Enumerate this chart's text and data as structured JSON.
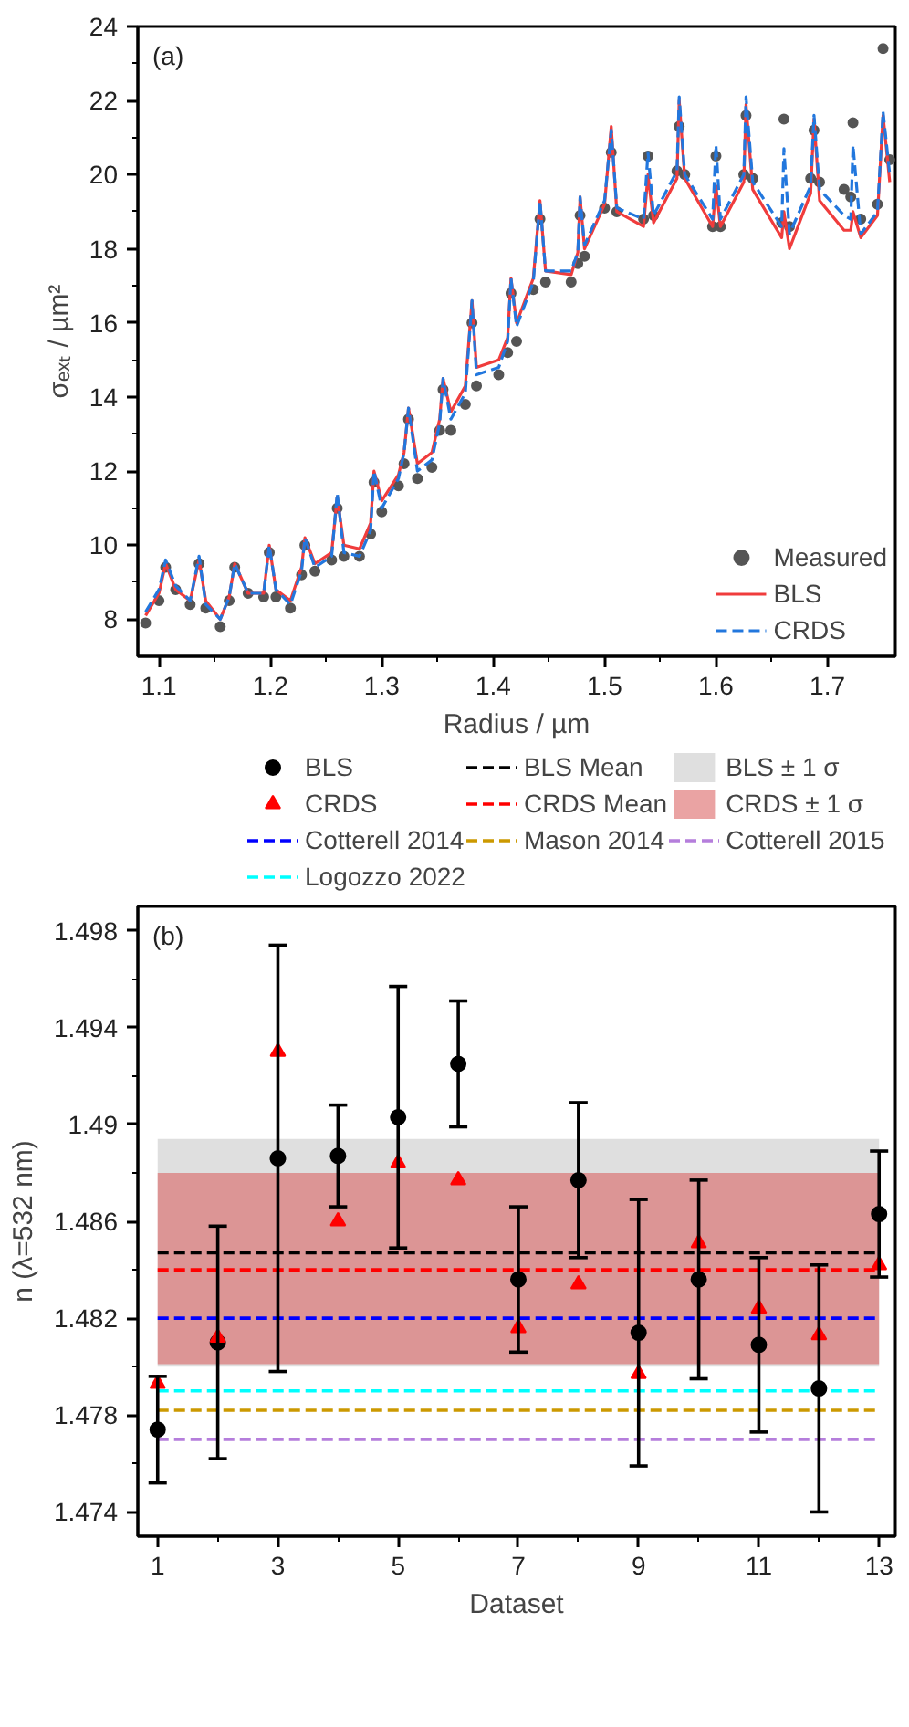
{
  "chart_data": [
    {
      "type": "line",
      "xlabel": "Radius / µm",
      "ylabel": "σₑₓₜ / µm²",
      "annotations": [
        "(a)"
      ],
      "x": [
        1.088,
        1.1,
        1.106,
        1.115,
        1.128,
        1.136,
        1.142,
        1.155,
        1.163,
        1.168,
        1.18,
        1.194,
        1.199,
        1.205,
        1.218,
        1.228,
        1.231,
        1.24,
        1.255,
        1.26,
        1.266,
        1.28,
        1.29,
        1.293,
        1.3,
        1.315,
        1.32,
        1.324,
        1.332,
        1.345,
        1.352,
        1.355,
        1.362,
        1.375,
        1.381,
        1.385,
        1.405,
        1.413,
        1.416,
        1.421,
        1.436,
        1.442,
        1.447,
        1.47,
        1.476,
        1.478,
        1.482,
        1.5,
        1.506,
        1.511,
        1.535,
        1.539,
        1.544,
        1.565,
        1.567,
        1.572,
        1.597,
        1.6,
        1.604,
        1.625,
        1.627,
        1.633,
        1.659,
        1.661,
        1.666,
        1.685,
        1.688,
        1.693,
        1.715,
        1.721,
        1.723,
        1.73,
        1.745,
        1.75,
        1.756
      ],
      "series": [
        {
          "name": "Measured",
          "type": "scatter",
          "color": "#555555",
          "marker": "circle",
          "values": [
            7.9,
            8.5,
            9.4,
            8.8,
            8.4,
            9.5,
            8.3,
            7.8,
            8.5,
            9.4,
            8.7,
            8.6,
            9.8,
            8.6,
            8.3,
            9.2,
            10.0,
            9.3,
            9.6,
            11.0,
            9.7,
            9.7,
            10.3,
            11.7,
            10.9,
            11.6,
            12.2,
            13.4,
            11.8,
            12.1,
            13.1,
            14.2,
            13.1,
            13.8,
            16.0,
            14.3,
            14.6,
            15.2,
            16.8,
            15.5,
            16.9,
            18.8,
            17.1,
            17.1,
            17.6,
            18.9,
            17.8,
            19.1,
            20.6,
            19.0,
            18.8,
            20.5,
            18.9,
            20.1,
            21.3,
            20.0,
            18.6,
            20.5,
            18.6,
            20.0,
            21.6,
            19.9,
            18.7,
            21.5,
            18.6,
            19.9,
            21.2,
            19.8,
            19.6,
            19.4,
            21.4,
            18.8,
            19.2,
            23.4,
            20.4
          ]
        },
        {
          "name": "BLS",
          "type": "line",
          "color": "#f03c3c",
          "line_style": "solid",
          "values": [
            8.1,
            8.7,
            9.5,
            8.8,
            8.5,
            9.6,
            8.5,
            8.0,
            8.6,
            9.5,
            8.7,
            8.7,
            10.0,
            8.8,
            8.5,
            9.4,
            10.2,
            9.5,
            9.8,
            11.3,
            10.0,
            9.9,
            10.6,
            12.0,
            11.2,
            11.9,
            12.5,
            13.7,
            12.2,
            12.5,
            13.4,
            14.5,
            13.6,
            14.3,
            16.6,
            14.8,
            15.0,
            15.6,
            17.2,
            16.0,
            17.2,
            19.3,
            17.4,
            17.3,
            17.9,
            19.4,
            18.0,
            19.2,
            21.3,
            19.0,
            18.6,
            20.0,
            18.7,
            19.9,
            22.0,
            19.9,
            18.6,
            19.7,
            18.6,
            19.8,
            21.9,
            19.6,
            18.3,
            19.0,
            18.0,
            19.5,
            21.5,
            19.3,
            18.5,
            18.5,
            19.0,
            18.3,
            18.9,
            21.6,
            19.8
          ]
        },
        {
          "name": "CRDS",
          "type": "line",
          "color": "#2277dd",
          "line_style": "dashed",
          "values": [
            8.2,
            8.8,
            9.6,
            8.9,
            8.5,
            9.7,
            8.4,
            8.0,
            8.6,
            9.5,
            8.7,
            8.7,
            10.0,
            8.8,
            8.4,
            9.3,
            10.2,
            9.4,
            9.7,
            11.4,
            9.8,
            9.7,
            10.4,
            12.0,
            11.0,
            11.8,
            12.5,
            13.7,
            12.0,
            12.3,
            13.3,
            14.5,
            13.4,
            14.1,
            16.6,
            14.6,
            14.8,
            15.5,
            17.2,
            15.9,
            17.1,
            19.3,
            17.4,
            17.4,
            17.9,
            19.4,
            18.1,
            19.3,
            21.2,
            19.1,
            18.8,
            20.6,
            18.9,
            20.1,
            22.1,
            20.0,
            18.8,
            20.8,
            18.8,
            20.0,
            22.1,
            19.8,
            18.6,
            20.7,
            18.4,
            19.7,
            21.6,
            19.6,
            18.9,
            18.8,
            20.8,
            18.4,
            19.0,
            21.7,
            20.0
          ]
        }
      ],
      "xlim": [
        1.081,
        1.761
      ],
      "xticks": [
        1.1,
        1.2,
        1.3,
        1.4,
        1.5,
        1.6,
        1.7
      ],
      "ylim": [
        7,
        24
      ],
      "yticks": [
        8,
        10,
        12,
        14,
        16,
        18,
        20,
        22,
        24
      ],
      "legend": "bottom right",
      "grid": false
    },
    {
      "type": "scatter",
      "xlabel": "Dataset",
      "ylabel": "n (λ=532 nm)",
      "annotations": [
        "(b)"
      ],
      "x": [
        1,
        2,
        3,
        4,
        5,
        6,
        7,
        8,
        9,
        10,
        11,
        12,
        13
      ],
      "series": [
        {
          "name": "BLS",
          "type": "scatter",
          "color": "#000000",
          "marker": "circle",
          "values": [
            1.4774,
            1.481,
            1.4886,
            1.4887,
            1.4903,
            1.4925,
            1.4836,
            1.4877,
            1.4814,
            1.4836,
            1.4809,
            1.4791,
            1.4863
          ],
          "errors": [
            0.0022,
            0.0048,
            0.0088,
            0.0021,
            0.0054,
            0.0026,
            0.003,
            0.0032,
            0.0055,
            0.0041,
            0.0036,
            0.0051,
            0.0026
          ]
        },
        {
          "name": "CRDS",
          "type": "scatter",
          "color": "#ff0000",
          "marker": "triangle",
          "values": [
            1.4793,
            1.4812,
            1.493,
            1.486,
            1.4884,
            1.4877,
            1.4816,
            1.4834,
            1.4797,
            1.4851,
            1.4824,
            1.4813,
            1.4842
          ]
        }
      ],
      "ref_lines": [
        {
          "axis": "y",
          "value": 1.4847,
          "label": "BLS Mean",
          "color": "#000000",
          "line_style": "dashed"
        },
        {
          "axis": "y",
          "value": 1.484,
          "label": "CRDS Mean",
          "color": "#ff0000",
          "line_style": "dashed"
        },
        {
          "axis": "y",
          "value": 1.482,
          "label": "Cotterell 2014",
          "color": "#0000ff",
          "line_style": "dashed"
        },
        {
          "axis": "y",
          "value": 1.4782,
          "label": "Mason 2014",
          "color": "#cc9900",
          "line_style": "dashed"
        },
        {
          "axis": "y",
          "value": 1.477,
          "label": "Cotterell 2015",
          "color": "#b57edc",
          "line_style": "dashed"
        },
        {
          "axis": "y",
          "value": 1.479,
          "label": "Logozzo 2022",
          "color": "#00ffff",
          "line_style": "dashed"
        }
      ],
      "bands": [
        {
          "axis": "y",
          "from": 1.48,
          "to": 1.4894,
          "label": "BLS ± 1 σ",
          "color": "#c4c4c4"
        },
        {
          "axis": "y",
          "from": 1.4801,
          "to": 1.488,
          "label": "CRDS ± 1 σ",
          "color": "#d85858"
        }
      ],
      "xlim": [
        0.67,
        13.27
      ],
      "xticks": [
        1,
        3,
        5,
        7,
        9,
        11,
        13
      ],
      "ylim": [
        1.473,
        1.499
      ],
      "yticks": [
        1.474,
        1.478,
        1.482,
        1.486,
        1.49,
        1.494,
        1.498
      ],
      "legend": "top",
      "grid": false
    }
  ]
}
